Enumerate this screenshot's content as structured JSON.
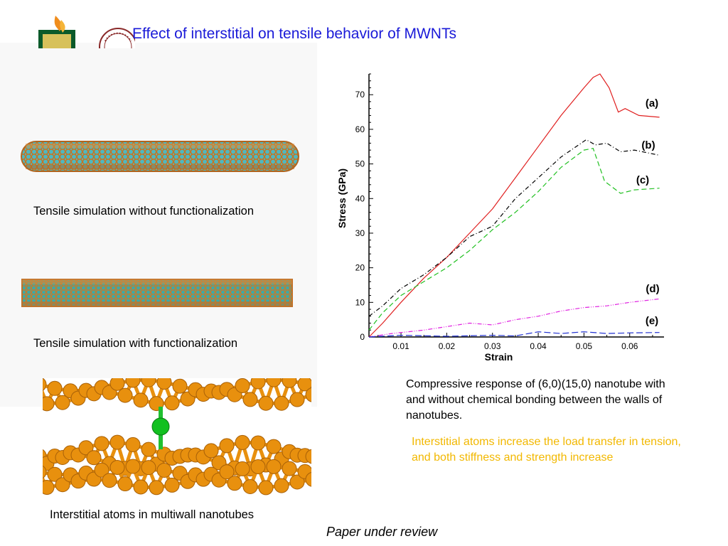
{
  "slide": {
    "title": "Effect of interstitial  on tensile behavior of MWNTs",
    "caption_without": "Tensile simulation without functionalization",
    "caption_with": "Tensile simulation  with functionalization",
    "caption_atoms": "Interstitial atoms in multiwall nanotubes",
    "compress_text": "Compressive response of (6,0)(15,0) nanotube with and without chemical bonding between the walls of nanotubes.",
    "yellow_text": "Interstitial atoms increase the load transfer in tension, and both stiffness and strength increase",
    "review": "Paper under review"
  },
  "colors": {
    "title": "#1a1ad8",
    "highlight": "#f2b800",
    "nanotube_orange": "#d9822b",
    "nanotube_cyan": "#3fb6c4",
    "atom_orange": "#e8900e",
    "atom_green": "#10c020"
  },
  "chart_data": {
    "type": "line",
    "xlabel": "Strain",
    "ylabel": "Stress (GPa)",
    "xlim": [
      0.003,
      0.0675
    ],
    "ylim": [
      0,
      76
    ],
    "xticks": [
      0.01,
      0.02,
      0.03,
      0.04,
      0.05,
      0.06
    ],
    "xtick_labels": [
      "0.01",
      "0.02",
      "0.03",
      "0.04",
      "0.05",
      "0.06"
    ],
    "yticks": [
      0,
      10,
      20,
      30,
      40,
      50,
      60,
      70
    ],
    "ytick_labels": [
      "0",
      "10",
      "20",
      "30",
      "40",
      "50",
      "60",
      "70"
    ],
    "grid": false,
    "legend": "inline labels at right end of curves",
    "series": [
      {
        "name": "(a)",
        "color": "#e02020",
        "dash": "",
        "points": [
          [
            0.003,
            0
          ],
          [
            0.006,
            4
          ],
          [
            0.01,
            10
          ],
          [
            0.015,
            17
          ],
          [
            0.02,
            23
          ],
          [
            0.025,
            30
          ],
          [
            0.03,
            37
          ],
          [
            0.035,
            46
          ],
          [
            0.04,
            55
          ],
          [
            0.045,
            64
          ],
          [
            0.05,
            72
          ],
          [
            0.052,
            75
          ],
          [
            0.0535,
            76
          ],
          [
            0.0555,
            72
          ],
          [
            0.0575,
            65
          ],
          [
            0.059,
            66
          ],
          [
            0.062,
            64
          ],
          [
            0.0665,
            63.5
          ]
        ]
      },
      {
        "name": "(b)",
        "color": "#000000",
        "dash": "6,3,1,3",
        "points": [
          [
            0.003,
            6
          ],
          [
            0.006,
            9
          ],
          [
            0.01,
            14
          ],
          [
            0.015,
            18
          ],
          [
            0.02,
            23
          ],
          [
            0.025,
            29
          ],
          [
            0.03,
            32
          ],
          [
            0.035,
            40
          ],
          [
            0.04,
            46
          ],
          [
            0.045,
            52
          ],
          [
            0.0505,
            57
          ],
          [
            0.0525,
            55.5
          ],
          [
            0.055,
            56
          ],
          [
            0.058,
            53.5
          ],
          [
            0.061,
            54
          ],
          [
            0.0665,
            52.5
          ]
        ]
      },
      {
        "name": "(c)",
        "color": "#20c020",
        "dash": "7,4",
        "points": [
          [
            0.003,
            2
          ],
          [
            0.006,
            7
          ],
          [
            0.01,
            12
          ],
          [
            0.015,
            16
          ],
          [
            0.02,
            20
          ],
          [
            0.025,
            25
          ],
          [
            0.03,
            31
          ],
          [
            0.035,
            36
          ],
          [
            0.04,
            42
          ],
          [
            0.045,
            49
          ],
          [
            0.05,
            54
          ],
          [
            0.052,
            54.5
          ],
          [
            0.0545,
            45
          ],
          [
            0.058,
            41.5
          ],
          [
            0.061,
            42.5
          ],
          [
            0.0665,
            43
          ]
        ]
      },
      {
        "name": "(d)",
        "color": "#e020e0",
        "dash": "6,2,1,2,1,2",
        "points": [
          [
            0.003,
            0
          ],
          [
            0.008,
            1
          ],
          [
            0.015,
            2
          ],
          [
            0.02,
            3
          ],
          [
            0.025,
            4
          ],
          [
            0.03,
            3.5
          ],
          [
            0.035,
            5
          ],
          [
            0.04,
            6
          ],
          [
            0.045,
            7.5
          ],
          [
            0.05,
            8.5
          ],
          [
            0.055,
            9
          ],
          [
            0.06,
            10
          ],
          [
            0.0665,
            11
          ]
        ]
      },
      {
        "name": "(e)",
        "color": "#2030d0",
        "dash": "9,4",
        "points": [
          [
            0.003,
            0
          ],
          [
            0.01,
            0.5
          ],
          [
            0.02,
            0.2
          ],
          [
            0.03,
            0.5
          ],
          [
            0.035,
            0.3
          ],
          [
            0.04,
            1.5
          ],
          [
            0.045,
            1
          ],
          [
            0.05,
            1.5
          ],
          [
            0.055,
            1
          ],
          [
            0.06,
            1.2
          ],
          [
            0.0665,
            1.3
          ]
        ]
      }
    ]
  }
}
